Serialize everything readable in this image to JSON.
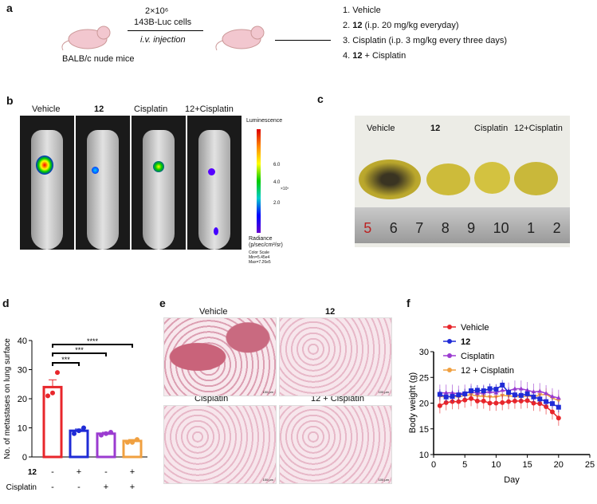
{
  "panels": {
    "a": "a",
    "b": "b",
    "c": "c",
    "d": "d",
    "e": "e",
    "f": "f"
  },
  "panel_a": {
    "mouse_label": "BALB/c nude mice",
    "cells": "2×10⁶",
    "cells2": "143B-Luc cells",
    "injection": "i.v. injection",
    "groups": [
      {
        "num": "1.",
        "bold": "",
        "text": "Vehicle"
      },
      {
        "num": "2.",
        "bold": "12",
        "text": " (i.p. 20 mg/kg everyday)"
      },
      {
        "num": "3.",
        "bold": "",
        "text": "Cisplatin (i.p. 3 mg/kg every three days)"
      },
      {
        "num": "4.",
        "bold": "12",
        "text": " + Cisplatin"
      }
    ]
  },
  "panel_b": {
    "labels": [
      "Vehicle",
      "12",
      "Cisplatin",
      "12+Cisplatin"
    ],
    "scale_title": "Luminescence",
    "ticks": [
      "6.0",
      "4.0",
      "2.0"
    ],
    "multiplier": "×10⁷",
    "unit1": "Radiance",
    "unit2": "(p/sec/cm²/sr)",
    "scale_info": [
      "Color Scale",
      "Min=5.45e4",
      "Max=7.26e5"
    ]
  },
  "panel_c": {
    "labels": [
      "Vehicle",
      "12",
      "Cisplatin",
      "12+Cisplatin"
    ],
    "ruler": [
      "5",
      "6",
      "7",
      "8",
      "9",
      "10",
      "1",
      "2"
    ]
  },
  "panel_e": {
    "labels": [
      "Vehicle",
      "12",
      "Cisplatin",
      "12 + Cisplatin"
    ],
    "scale_bar": "100 μm"
  },
  "colors": {
    "vehicle": "#e8262b",
    "c12": "#1f2bd6",
    "cisplatin": "#9b3bd0",
    "combo": "#f0a040"
  },
  "chart_data": [
    {
      "type": "bar",
      "title": "",
      "ylabel": "No. of metastases on lung surface",
      "ylim": [
        0,
        40
      ],
      "yticks": [
        0,
        10,
        20,
        30,
        40
      ],
      "categories": [
        "Vehicle",
        "12",
        "Cisplatin",
        "12+Cisplatin"
      ],
      "values": [
        24,
        9,
        8,
        5.5
      ],
      "errors": [
        2.5,
        0.6,
        0.5,
        0.5
      ],
      "points": [
        [
          21,
          22,
          29
        ],
        [
          8,
          9,
          10
        ],
        [
          7.5,
          8,
          8.5
        ],
        [
          5,
          5,
          6
        ]
      ],
      "row_labels": [
        "12",
        "Cisplatin"
      ],
      "row12": [
        "-",
        "+",
        "-",
        "+"
      ],
      "rowCis": [
        "-",
        "-",
        "+",
        "+"
      ],
      "significance": [
        {
          "from": 0,
          "to": 1,
          "label": "***"
        },
        {
          "from": 0,
          "to": 2,
          "label": "***"
        },
        {
          "from": 0,
          "to": 3,
          "label": "****"
        }
      ]
    },
    {
      "type": "line",
      "xlabel": "Day",
      "ylabel": "Body weight (g)",
      "xlim": [
        0,
        25
      ],
      "ylim": [
        10,
        30
      ],
      "xticks": [
        0,
        5,
        10,
        15,
        20,
        25
      ],
      "yticks": [
        10,
        15,
        20,
        25,
        30
      ],
      "legend": "top-left",
      "x": [
        1,
        2,
        3,
        4,
        5,
        6,
        7,
        8,
        9,
        10,
        11,
        12,
        13,
        14,
        15,
        16,
        17,
        18,
        19,
        20
      ],
      "series": [
        {
          "name": "Vehicle",
          "marker": "circle",
          "values": [
            19.5,
            20.1,
            20.3,
            20.3,
            20.6,
            20.9,
            20.4,
            20.4,
            20.0,
            20.0,
            20.1,
            20.3,
            20.4,
            20.4,
            20.5,
            20.0,
            19.9,
            19.3,
            18.3,
            17.1
          ],
          "error": 1.5
        },
        {
          "name": "12",
          "marker": "square",
          "values": [
            21.7,
            21.2,
            21.3,
            21.6,
            21.8,
            22.4,
            22.5,
            22.4,
            22.8,
            22.7,
            23.5,
            22.1,
            21.6,
            21.5,
            21.8,
            21.2,
            20.8,
            20.3,
            19.9,
            19.2
          ],
          "error": 1.0
        },
        {
          "name": "Cisplatin",
          "marker": "triangle",
          "values": [
            22.0,
            22.0,
            22.0,
            21.8,
            22.0,
            22.2,
            21.9,
            22.0,
            22.2,
            22.0,
            22.5,
            22.4,
            22.8,
            22.8,
            22.5,
            22.2,
            22.3,
            21.9,
            21.3,
            21.0
          ],
          "error": 1.6
        },
        {
          "name": "12 + Cisplatin",
          "marker": "triangle-down",
          "values": [
            21.3,
            21.2,
            21.3,
            21.2,
            21.5,
            21.6,
            21.4,
            21.3,
            21.2,
            21.2,
            21.5,
            21.4,
            21.3,
            21.2,
            21.4,
            21.2,
            21.6,
            21.7,
            21.0,
            20.5
          ],
          "error": 1.2
        }
      ]
    }
  ]
}
